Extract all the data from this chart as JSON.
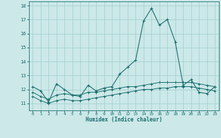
{
  "xlabel": "Humidex (Indice chaleur)",
  "background_color": "#cce8e8",
  "line_color": "#1a6e6e",
  "grid_color": "#9ecece",
  "xlim": [
    -0.5,
    23.5
  ],
  "ylim": [
    10.5,
    18.3
  ],
  "yticks": [
    11,
    12,
    13,
    14,
    15,
    16,
    17,
    18
  ],
  "xticks": [
    0,
    1,
    2,
    3,
    4,
    5,
    6,
    7,
    8,
    9,
    10,
    11,
    12,
    13,
    14,
    15,
    16,
    17,
    18,
    19,
    20,
    21,
    22,
    23
  ],
  "line1_x": [
    0,
    1,
    2,
    3,
    4,
    5,
    6,
    7,
    8,
    9,
    10,
    11,
    12,
    13,
    14,
    15,
    16,
    17,
    18,
    19,
    20,
    21,
    22,
    23
  ],
  "line1_y": [
    12.2,
    11.9,
    11.1,
    12.4,
    12.0,
    11.6,
    11.5,
    12.3,
    11.9,
    12.1,
    12.2,
    13.1,
    13.6,
    14.1,
    16.9,
    17.8,
    16.6,
    17.0,
    15.4,
    12.3,
    12.7,
    11.8,
    11.7,
    12.2
  ],
  "line2_x": [
    0,
    1,
    2,
    3,
    4,
    5,
    6,
    7,
    8,
    9,
    10,
    11,
    12,
    13,
    14,
    15,
    16,
    17,
    18,
    19,
    20,
    21,
    22,
    23
  ],
  "line2_y": [
    11.8,
    11.5,
    11.3,
    11.6,
    11.7,
    11.6,
    11.6,
    11.8,
    11.8,
    11.9,
    12.0,
    12.1,
    12.2,
    12.2,
    12.3,
    12.4,
    12.5,
    12.5,
    12.5,
    12.5,
    12.5,
    12.4,
    12.3,
    12.2
  ],
  "line3_x": [
    0,
    1,
    2,
    3,
    4,
    5,
    6,
    7,
    8,
    9,
    10,
    11,
    12,
    13,
    14,
    15,
    16,
    17,
    18,
    19,
    20,
    21,
    22,
    23
  ],
  "line3_y": [
    11.5,
    11.2,
    11.0,
    11.2,
    11.3,
    11.2,
    11.2,
    11.3,
    11.4,
    11.5,
    11.6,
    11.7,
    11.8,
    11.9,
    12.0,
    12.0,
    12.1,
    12.1,
    12.2,
    12.2,
    12.2,
    12.1,
    12.0,
    11.9
  ]
}
